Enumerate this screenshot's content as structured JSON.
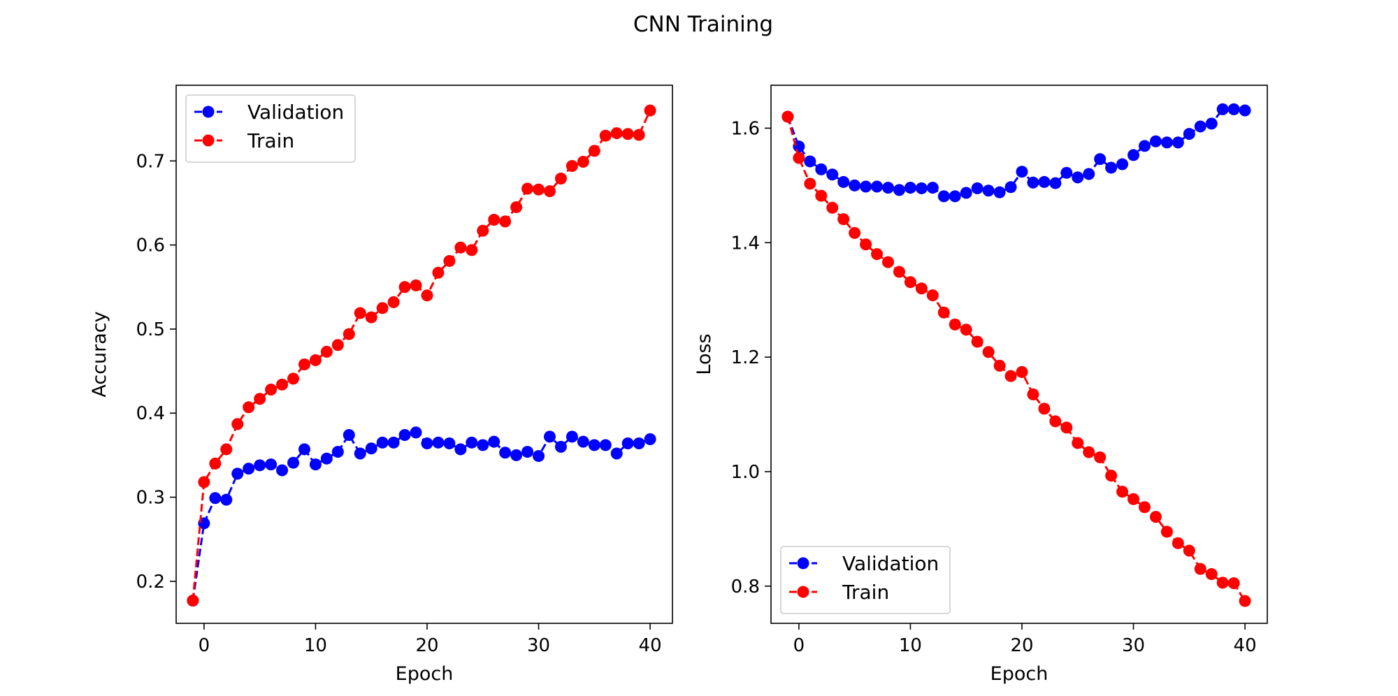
{
  "figure": {
    "title": "CNN Training"
  },
  "chart_data": [
    {
      "type": "line",
      "xlabel": "Epoch",
      "ylabel": "Accuracy",
      "xlim": [
        -2.5,
        42.0
      ],
      "ylim": [
        0.15,
        0.79
      ],
      "xticks": [
        0,
        10,
        20,
        30,
        40
      ],
      "yticks": [
        0.2,
        0.3,
        0.4,
        0.5,
        0.6,
        0.7
      ],
      "grid": false,
      "legend": "upper left",
      "x": [
        -1,
        0,
        1,
        2,
        3,
        4,
        5,
        6,
        7,
        8,
        9,
        10,
        11,
        12,
        13,
        14,
        15,
        16,
        17,
        18,
        19,
        20,
        21,
        22,
        23,
        24,
        25,
        26,
        27,
        28,
        29,
        30,
        31,
        32,
        33,
        34,
        35,
        36,
        37,
        38,
        39,
        40
      ],
      "series": [
        {
          "name": "Validation",
          "color": "#0000ff",
          "style": "dashed-marker",
          "values": [
            0.177,
            0.269,
            0.299,
            0.297,
            0.328,
            0.334,
            0.338,
            0.339,
            0.332,
            0.341,
            0.357,
            0.339,
            0.346,
            0.354,
            0.374,
            0.352,
            0.358,
            0.365,
            0.365,
            0.374,
            0.377,
            0.364,
            0.365,
            0.364,
            0.357,
            0.365,
            0.362,
            0.366,
            0.353,
            0.35,
            0.354,
            0.349,
            0.372,
            0.36,
            0.372,
            0.366,
            0.362,
            0.362,
            0.352,
            0.364,
            0.364,
            0.369
          ]
        },
        {
          "name": "Train",
          "color": "#ff0000",
          "style": "dashed-marker",
          "values": [
            0.177,
            0.318,
            0.34,
            0.357,
            0.387,
            0.407,
            0.417,
            0.428,
            0.434,
            0.441,
            0.458,
            0.463,
            0.473,
            0.481,
            0.494,
            0.519,
            0.514,
            0.525,
            0.532,
            0.55,
            0.552,
            0.54,
            0.567,
            0.581,
            0.597,
            0.594,
            0.617,
            0.63,
            0.628,
            0.645,
            0.667,
            0.666,
            0.664,
            0.679,
            0.694,
            0.699,
            0.712,
            0.73,
            0.733,
            0.732,
            0.731,
            0.76
          ]
        }
      ]
    },
    {
      "type": "line",
      "xlabel": "Epoch",
      "ylabel": "Loss",
      "xlim": [
        -2.5,
        42.0
      ],
      "ylim": [
        0.735,
        1.675
      ],
      "xticks": [
        0,
        10,
        20,
        30,
        40
      ],
      "yticks": [
        0.8,
        1.0,
        1.2,
        1.4,
        1.6
      ],
      "grid": false,
      "legend": "lower left",
      "x": [
        -1,
        0,
        1,
        2,
        3,
        4,
        5,
        6,
        7,
        8,
        9,
        10,
        11,
        12,
        13,
        14,
        15,
        16,
        17,
        18,
        19,
        20,
        21,
        22,
        23,
        24,
        25,
        26,
        27,
        28,
        29,
        30,
        31,
        32,
        33,
        34,
        35,
        36,
        37,
        38,
        39,
        40
      ],
      "series": [
        {
          "name": "Validation",
          "color": "#0000ff",
          "style": "dashed-marker",
          "values": [
            1.62,
            1.568,
            1.542,
            1.528,
            1.519,
            1.506,
            1.5,
            1.498,
            1.498,
            1.496,
            1.492,
            1.496,
            1.495,
            1.496,
            1.481,
            1.481,
            1.487,
            1.495,
            1.491,
            1.488,
            1.497,
            1.524,
            1.505,
            1.506,
            1.504,
            1.522,
            1.514,
            1.52,
            1.546,
            1.531,
            1.537,
            1.553,
            1.569,
            1.577,
            1.575,
            1.575,
            1.59,
            1.603,
            1.608,
            1.633,
            1.633,
            1.631
          ]
        },
        {
          "name": "Train",
          "color": "#ff0000",
          "style": "dashed-marker",
          "values": [
            1.62,
            1.548,
            1.503,
            1.482,
            1.461,
            1.441,
            1.417,
            1.397,
            1.38,
            1.366,
            1.349,
            1.331,
            1.32,
            1.308,
            1.278,
            1.257,
            1.248,
            1.227,
            1.209,
            1.185,
            1.167,
            1.174,
            1.135,
            1.11,
            1.088,
            1.077,
            1.05,
            1.034,
            1.025,
            0.993,
            0.965,
            0.952,
            0.938,
            0.921,
            0.895,
            0.875,
            0.862,
            0.83,
            0.821,
            0.806,
            0.805,
            0.774
          ]
        }
      ]
    }
  ]
}
